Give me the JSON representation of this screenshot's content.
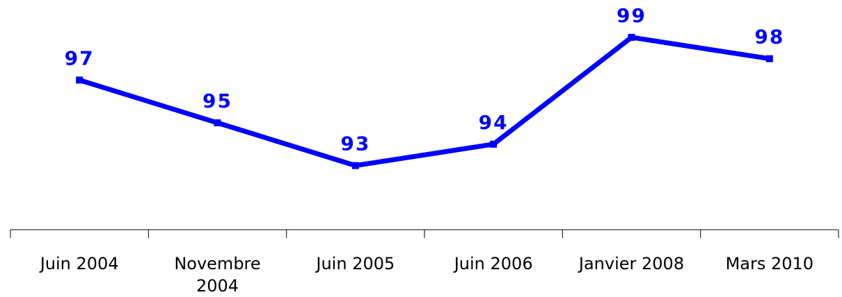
{
  "chart_data": {
    "type": "line",
    "categories": [
      "Juin 2004",
      "Novembre 2004",
      "Juin 2005",
      "Juin 2006",
      "Janvier 2008",
      "Mars 2010"
    ],
    "series": [
      {
        "color": "#0000ff",
        "values": [
          97,
          95,
          93,
          94,
          99,
          98
        ]
      }
    ],
    "ylim": [
      90,
      100
    ]
  }
}
